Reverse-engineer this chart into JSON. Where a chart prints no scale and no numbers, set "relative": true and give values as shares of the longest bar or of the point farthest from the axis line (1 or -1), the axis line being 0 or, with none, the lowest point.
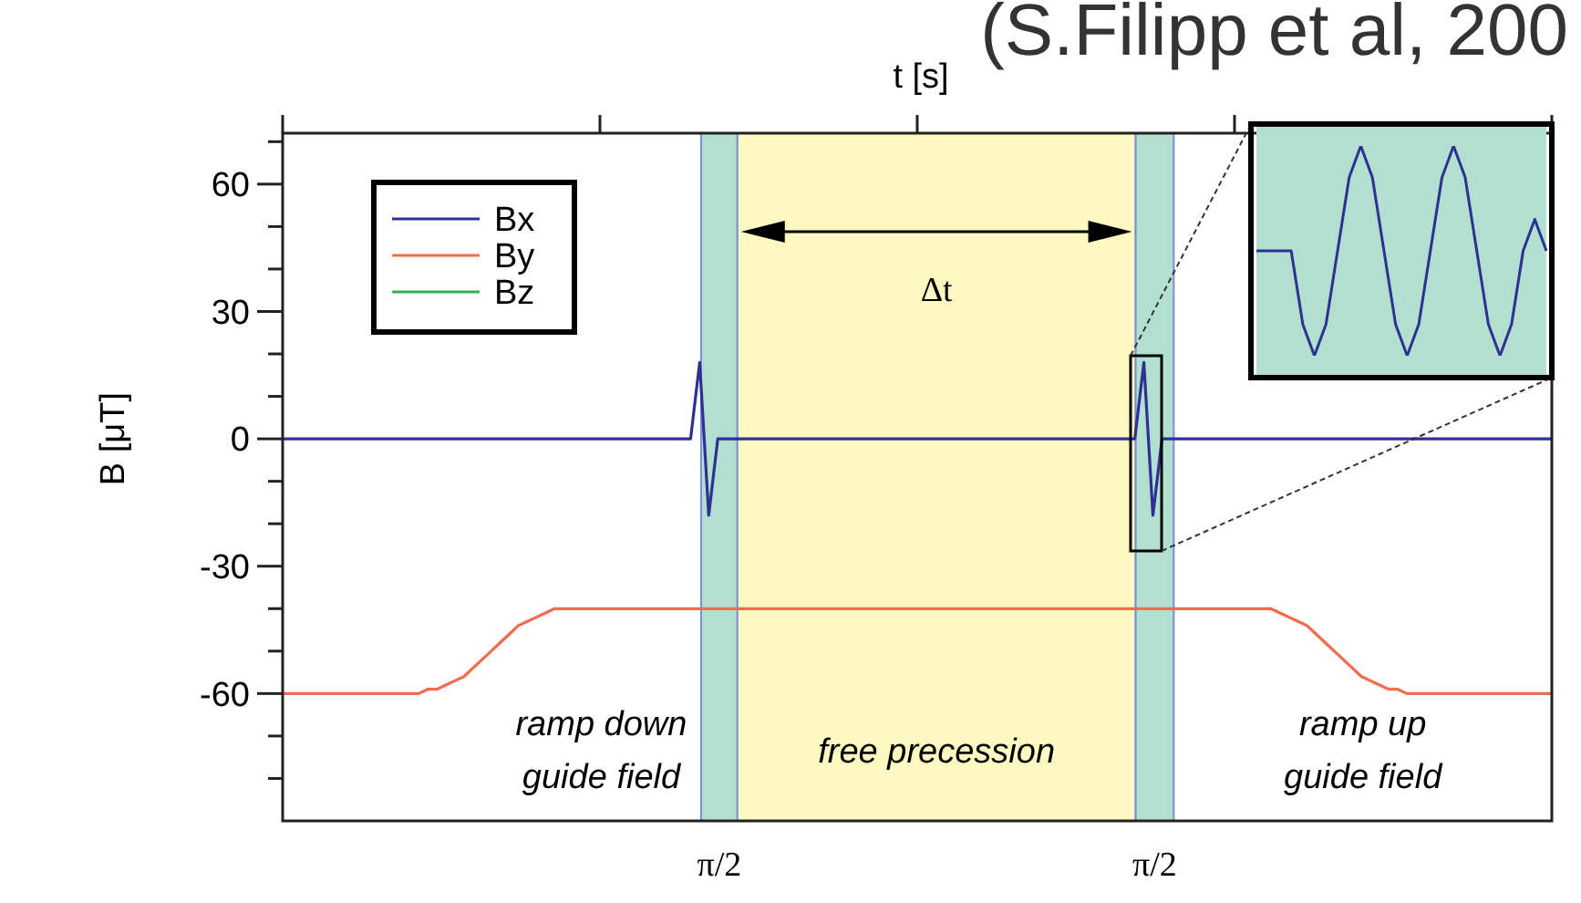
{
  "chart_data": [
    {
      "type": "line",
      "title": "(S.Filipp et al, 200",
      "xlabel": "t [s]",
      "ylabel": "B [μT]",
      "categories": [
        null,
        null,
        null,
        null,
        null,
        null,
        null,
        null,
        null,
        null,
        null,
        null,
        null,
        null,
        null,
        null,
        null,
        null,
        null,
        null,
        null,
        null,
        null,
        null,
        null,
        null,
        null,
        null,
        null,
        null,
        null,
        null,
        null,
        null,
        null,
        null,
        null,
        null,
        null,
        null,
        null,
        null,
        null,
        null,
        null,
        null,
        null,
        null,
        null,
        null,
        null,
        null,
        null,
        null,
        null,
        null,
        null,
        null,
        null,
        null,
        null,
        null,
        null,
        null,
        null,
        null,
        null,
        null,
        null,
        null,
        null,
        null,
        null,
        null,
        null,
        null,
        null,
        null,
        null,
        null,
        null,
        null,
        null,
        null,
        null,
        null,
        null,
        null,
        null,
        null,
        null,
        null,
        null,
        null,
        null,
        null,
        null,
        null,
        null,
        null,
        null,
        null,
        null,
        null,
        null,
        null,
        null,
        null,
        null,
        null,
        null,
        null,
        null,
        null,
        null,
        null,
        null,
        null,
        null,
        null,
        null,
        null,
        null,
        null,
        null,
        null,
        null,
        null,
        null,
        null,
        null,
        null,
        null,
        null,
        null,
        null,
        null,
        null,
        null,
        null,
        null
      ],
      "ylim": [
        -90,
        72
      ],
      "yticks": [
        {
          "value": -80,
          "label": null
        },
        {
          "value": -70,
          "label": null
        },
        -60,
        {
          "value": -50,
          "label": null
        },
        {
          "value": -40,
          "label": null
        },
        -30,
        {
          "value": -20,
          "label": null
        },
        {
          "value": -10,
          "label": null
        },
        0,
        {
          "value": 10,
          "label": null
        },
        {
          "value": 20,
          "label": null
        },
        30,
        {
          "value": 40,
          "label": null
        },
        {
          "value": 50,
          "label": null
        },
        60,
        {
          "value": 70,
          "label": null
        }
      ],
      "series": [
        {
          "name": "Bx",
          "color": "#2e3192",
          "values": [
            0,
            0,
            0,
            0,
            0,
            0,
            0,
            0,
            0,
            0,
            0,
            0,
            0,
            0,
            0,
            0,
            0,
            0,
            0,
            0,
            0,
            0,
            0,
            0,
            0,
            0,
            0,
            0,
            0,
            0,
            0,
            0,
            0,
            0,
            0,
            0,
            0,
            0,
            0,
            0,
            0,
            0,
            0,
            0,
            0,
            0,
            18,
            -18,
            0,
            0,
            0,
            0,
            0,
            0,
            0,
            0,
            0,
            0,
            0,
            0,
            0,
            0,
            0,
            0,
            0,
            0,
            0,
            0,
            0,
            0,
            0,
            0,
            0,
            0,
            0,
            0,
            0,
            0,
            0,
            0,
            0,
            0,
            0,
            0,
            0,
            0,
            0,
            0,
            0,
            0,
            0,
            0,
            0,
            0,
            0,
            18,
            -18,
            0,
            0,
            0,
            0,
            0,
            0,
            0,
            0,
            0,
            0,
            0,
            0,
            0,
            0,
            0,
            0,
            0,
            0,
            0,
            0,
            0,
            0,
            0,
            0,
            0,
            0,
            0,
            0,
            0,
            0,
            0,
            0,
            0,
            0,
            0,
            0,
            0,
            0,
            0,
            0,
            0,
            0,
            0,
            0
          ]
        },
        {
          "name": "By",
          "color": "#f26b4f",
          "values": [
            -60,
            -60,
            -60,
            -60,
            -60,
            -60,
            -60,
            -60,
            -60,
            -60,
            -60,
            -60,
            -60,
            -60,
            -60,
            -60,
            -59,
            -59,
            -58,
            -57,
            -56,
            -54,
            -52,
            -50,
            -48,
            -46,
            -44,
            -43,
            -42,
            -41,
            -40,
            -40,
            -40,
            -40,
            -40,
            -40,
            -40,
            -40,
            -40,
            -40,
            -40,
            -40,
            -40,
            -40,
            -40,
            -40,
            -40,
            -40,
            -40,
            -40,
            -40,
            -40,
            -40,
            -40,
            -40,
            -40,
            -40,
            -40,
            -40,
            -40,
            -40,
            -40,
            -40,
            -40,
            -40,
            -40,
            -40,
            -40,
            -40,
            -40,
            -40,
            -40,
            -40,
            -40,
            -40,
            -40,
            -40,
            -40,
            -40,
            -40,
            -40,
            -40,
            -40,
            -40,
            -40,
            -40,
            -40,
            -40,
            -40,
            -40,
            -40,
            -40,
            -40,
            -40,
            -40,
            -40,
            -40,
            -40,
            -40,
            -40,
            -40,
            -40,
            -40,
            -40,
            -40,
            -40,
            -40,
            -40,
            -40,
            -40,
            -41,
            -42,
            -43,
            -44,
            -46,
            -48,
            -50,
            -52,
            -54,
            -56,
            -57,
            -58,
            -59,
            -59,
            -60,
            -60,
            -60,
            -60,
            -60,
            -60,
            -60,
            -60,
            -60,
            -60,
            -60,
            -60,
            -60,
            -60,
            -60,
            -60,
            -60
          ]
        },
        {
          "name": "Bz",
          "color": "#2db34a",
          "values": [
            null,
            null,
            null,
            null,
            null,
            null,
            null,
            null,
            null,
            null,
            null,
            null,
            null,
            null,
            null,
            null,
            null,
            null,
            null,
            null,
            null,
            null,
            null,
            null,
            null,
            null,
            null,
            null,
            null,
            null,
            null,
            null,
            null,
            null,
            null,
            null,
            null,
            null,
            null,
            null,
            null,
            null,
            null,
            null,
            null,
            null,
            null,
            null,
            null,
            null,
            null,
            null,
            null,
            null,
            null,
            null,
            null,
            null,
            null,
            null,
            null,
            null,
            null,
            null,
            null,
            null,
            null,
            null,
            null,
            null,
            null,
            null,
            null,
            null,
            null,
            null,
            null,
            null,
            null,
            null,
            null,
            null,
            null,
            null,
            null,
            null,
            null,
            null,
            null,
            null,
            null,
            null,
            null,
            null,
            null,
            null,
            null,
            null,
            null,
            null,
            null,
            null,
            null,
            null,
            null,
            null,
            null,
            null,
            null,
            null,
            null,
            null,
            null,
            null,
            null,
            null,
            null,
            null,
            null,
            null,
            null,
            null,
            null,
            null,
            null,
            null,
            null,
            null,
            null,
            null,
            null,
            null,
            null,
            null,
            null,
            null,
            null,
            null,
            null,
            null,
            null
          ]
        }
      ],
      "annotations": [
        "Δt",
        "ramp down\nguide field",
        "ramp up\nguide field",
        "free precession",
        "π/2",
        "π/2"
      ],
      "legend": "top left",
      "line_style": "solid"
    },
    {
      "type": "line",
      "relative": true,
      "categories": [
        null,
        null,
        null,
        null,
        null,
        null,
        null,
        null,
        null,
        null,
        null,
        null,
        null,
        null,
        null,
        null,
        null,
        null,
        null,
        null,
        null,
        null,
        null,
        null,
        null,
        null
      ],
      "series": [
        {
          "color": "#2e3192",
          "values": [
            0.5,
            0.5,
            0.5,
            0.5,
            0.15,
            0,
            0.15,
            0.5,
            0.85,
            1,
            0.85,
            0.5,
            0.15,
            0,
            0.15,
            0.5,
            0.85,
            1,
            0.85,
            0.5,
            0.15,
            0,
            0.15,
            0.5,
            0.65,
            0.5
          ]
        }
      ]
    }
  ]
}
